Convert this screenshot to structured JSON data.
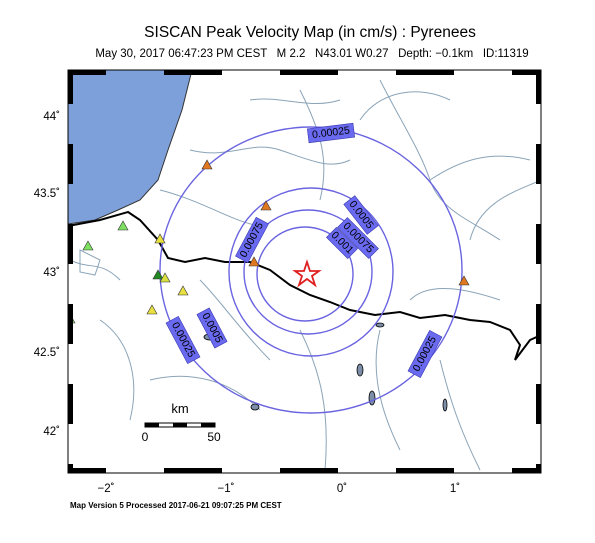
{
  "header": {
    "title": "SISCAN Peak Velocity Map (in cm/s) : Pyrenees",
    "event": "May 30, 2017 06:47:23 PM CEST   M 2.2   N43.01 W0.27   Depth: −0.1km   ID:11319"
  },
  "axes": {
    "lat_labels": [
      "44˚",
      "43.5˚",
      "43˚",
      "42.5˚",
      "42˚"
    ],
    "lon_labels": [
      "−2˚",
      "−1˚",
      "0˚",
      "1˚"
    ]
  },
  "contours": {
    "labels": [
      "0.00025",
      "0.0005",
      "0.00075",
      "0.00075",
      "0.001",
      "0.0005",
      "0.00025",
      "0.00025"
    ]
  },
  "scale": {
    "unit": "km",
    "labels": [
      "0",
      "50"
    ]
  },
  "footer": "Map Version 5 Processed 2017-06-21 09:07:25 PM CEST"
}
